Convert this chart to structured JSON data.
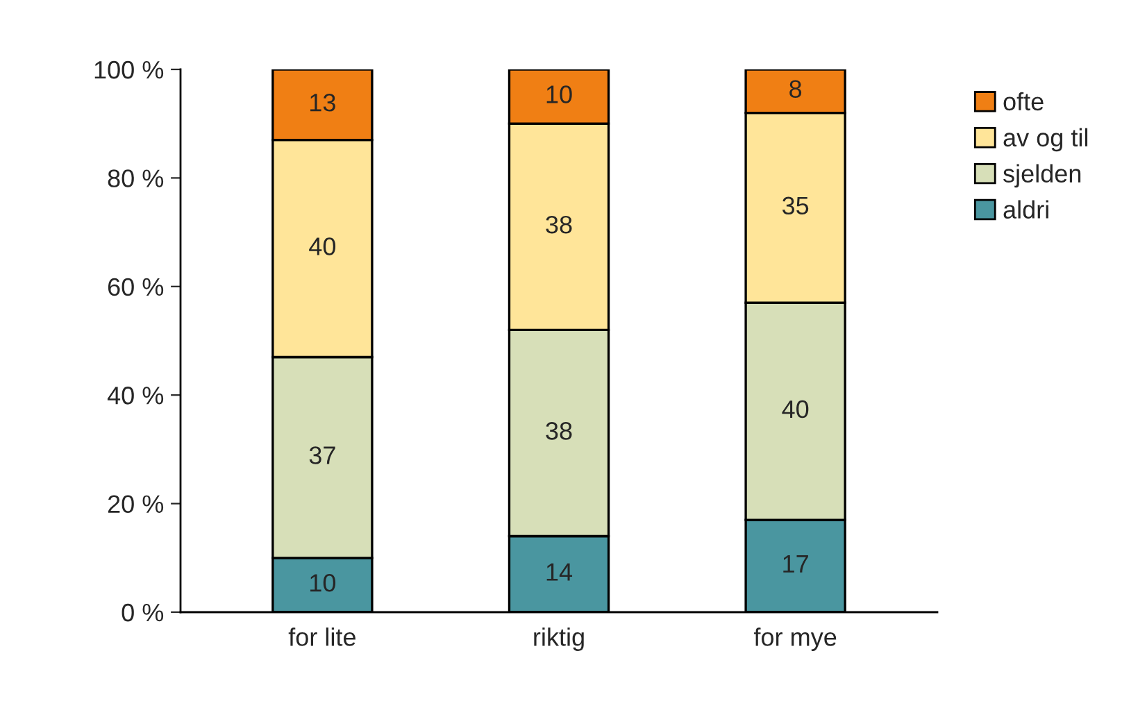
{
  "chart_data": {
    "type": "bar",
    "stacked": true,
    "categories": [
      "for lite",
      "riktig",
      "for mye"
    ],
    "series": [
      {
        "name": "aldri",
        "color": "#4a96a0",
        "values": [
          10,
          14,
          17
        ]
      },
      {
        "name": "sjelden",
        "color": "#d7dfb8",
        "values": [
          37,
          38,
          40
        ]
      },
      {
        "name": "av og til",
        "color": "#ffe599",
        "values": [
          40,
          38,
          35
        ]
      },
      {
        "name": "ofte",
        "color": "#f07f14",
        "values": [
          13,
          10,
          8
        ]
      }
    ],
    "ylim": [
      0,
      100
    ],
    "yticks": [
      {
        "value": 0,
        "label": "0 %"
      },
      {
        "value": 20,
        "label": "20 %"
      },
      {
        "value": 40,
        "label": "40 %"
      },
      {
        "value": 60,
        "label": "60 %"
      },
      {
        "value": 80,
        "label": "80 %"
      },
      {
        "value": 100,
        "label": "100 %"
      }
    ],
    "data_labels": true,
    "legend": "top right",
    "grid": false
  }
}
